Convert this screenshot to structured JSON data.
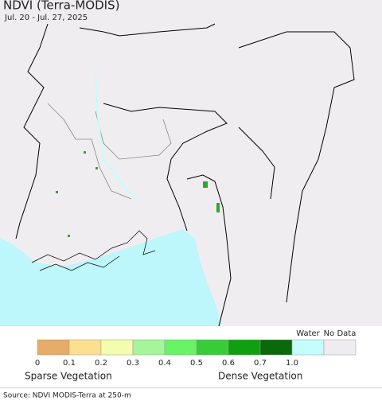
{
  "header": {
    "title": "NDVI (Terra-MODIS)",
    "subtitle": "Jul. 20 - Jul. 27, 2025"
  },
  "legend": {
    "colors": [
      "#e6ad68",
      "#fcdf8f",
      "#f4fcae",
      "#a6f59a",
      "#68f465",
      "#39cc39",
      "#0f9f0f",
      "#0a690a",
      "#c4fdfd",
      "#eeecf0"
    ],
    "tick_labels": [
      "0",
      "0.1",
      "0.2",
      "0.3",
      "0.4",
      "0.5",
      "0.6",
      "0.7",
      "1.0"
    ],
    "water": "Water",
    "no_data": "No Data",
    "sparse": "Sparse Vegetation",
    "dense": "Dense Vegetation"
  },
  "footer": {
    "source": "Source: NDVI MODIS-Terra at 250-m"
  }
}
